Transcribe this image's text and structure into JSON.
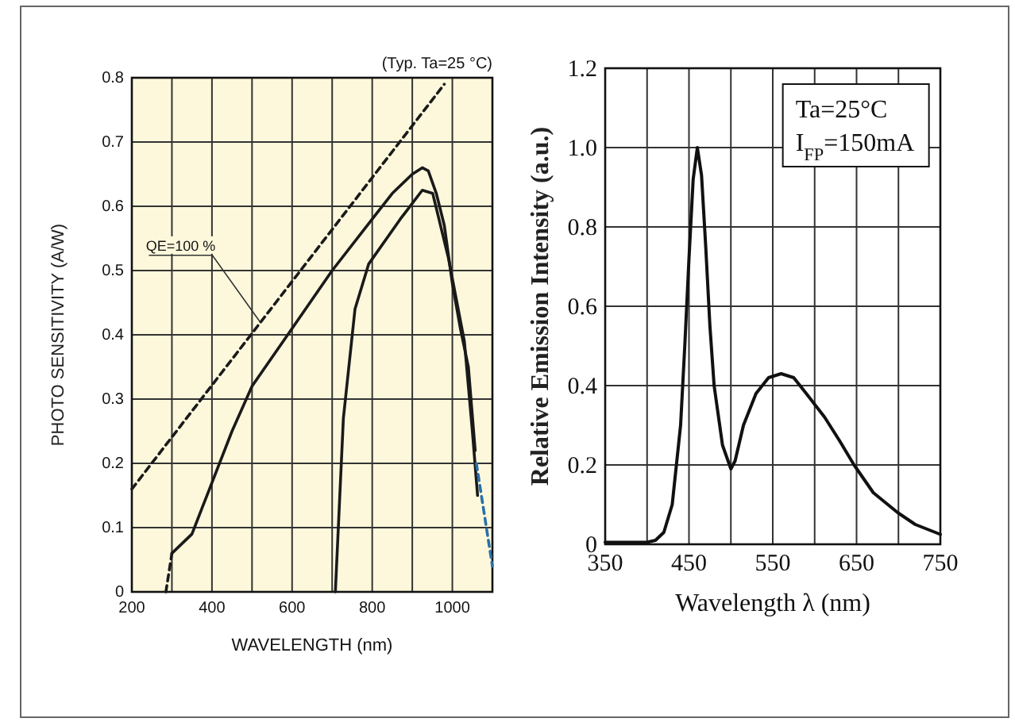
{
  "chart_data": [
    {
      "type": "line",
      "xlabel": "WAVELENGTH (nm)",
      "ylabel": "PHOTO SENSITIVITY (A/W)",
      "annotations": [
        "(Typ. Ta=25 °C)",
        {
          "text": "QE=100 %",
          "x": 520,
          "y": 0.42
        }
      ],
      "xlim": [
        200,
        1100
      ],
      "ylim": [
        0,
        0.8
      ],
      "grid": true,
      "xticks": [
        200,
        {
          "value": 300,
          "label": null
        },
        400,
        {
          "value": 500,
          "label": null
        },
        600,
        {
          "value": 700,
          "label": null
        },
        800,
        {
          "value": 900,
          "label": null
        },
        1000,
        {
          "value": 1100,
          "label": null
        }
      ],
      "yticks": [
        0,
        0.1,
        0.2,
        0.3,
        0.4,
        0.5,
        0.6,
        0.7,
        0.8
      ],
      "series": [
        {
          "color": "#1a1a1a",
          "line_style": "dashed",
          "x": [
            200,
            980
          ],
          "values": [
            0.16,
            0.79
          ]
        },
        {
          "color": "#1a1a1a",
          "line_style": "solid",
          "x": [
            300,
            350,
            400,
            450,
            500,
            600,
            700,
            800,
            850,
            900,
            925,
            940,
            960,
            980,
            1000,
            1020,
            1040,
            1057
          ],
          "values": [
            0.06,
            0.09,
            0.17,
            0.25,
            0.32,
            0.41,
            0.5,
            0.58,
            0.62,
            0.65,
            0.66,
            0.655,
            0.62,
            0.57,
            0.48,
            0.41,
            0.35,
            0.22
          ]
        },
        {
          "color": "#1a1a1a",
          "line_style": "solid",
          "x": [
            708,
            728,
            757,
            791,
            870,
            925,
            951,
            990,
            1030,
            1050,
            1063
          ],
          "values": [
            0,
            0.27,
            0.44,
            0.51,
            0.58,
            0.625,
            0.62,
            0.52,
            0.39,
            0.25,
            0.15
          ]
        },
        {
          "color": "#1a1a1a",
          "line_style": "dashed",
          "x": [
            285,
            300
          ],
          "values": [
            0,
            0.06
          ]
        },
        {
          "color": "#2a6fa8",
          "line_style": "dashed",
          "x": [
            1060,
            1100
          ],
          "values": [
            0.2,
            0.04
          ]
        }
      ]
    },
    {
      "type": "line",
      "xlabel": "Wavelength λ (nm)",
      "ylabel": "Relative Emission Intensity (a.u.)",
      "annotations": [
        "Ta=25°C",
        "I$_{FP}$=150mA"
      ],
      "xlim": [
        350,
        750
      ],
      "ylim": [
        0,
        1.2
      ],
      "grid": true,
      "xticks": [
        350,
        {
          "value": 400,
          "label": null
        },
        450,
        {
          "value": 500,
          "label": null
        },
        550,
        {
          "value": 600,
          "label": null
        },
        650,
        {
          "value": 700,
          "label": null
        },
        750
      ],
      "yticks": [
        0,
        0.2,
        0.4,
        0.6,
        0.8,
        {
          "value": 1,
          "label": "1.0"
        },
        1.2
      ],
      "series": [
        {
          "color": "#111111",
          "line_style": "solid",
          "x": [
            350,
            400,
            410,
            420,
            430,
            440,
            445,
            450,
            455,
            460,
            465,
            470,
            475,
            480,
            490,
            500,
            505,
            515,
            530,
            545,
            560,
            575,
            590,
            612,
            630,
            647,
            670,
            699,
            720,
            750
          ],
          "values": [
            0.005,
            0.005,
            0.01,
            0.03,
            0.1,
            0.3,
            0.5,
            0.72,
            0.92,
            1.0,
            0.93,
            0.75,
            0.55,
            0.4,
            0.25,
            0.19,
            0.21,
            0.3,
            0.38,
            0.42,
            0.43,
            0.42,
            0.38,
            0.32,
            0.26,
            0.2,
            0.13,
            0.08,
            0.05,
            0.025
          ]
        }
      ]
    }
  ]
}
